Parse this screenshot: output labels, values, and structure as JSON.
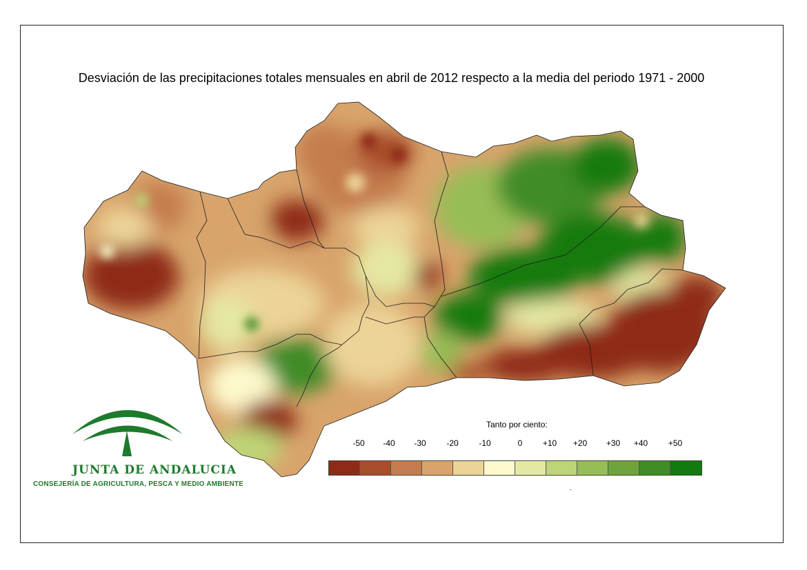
{
  "title": "Desviación de las precipitaciones totales mensuales en abril de 2012 respecto a la media del periodo 1971 - 2000",
  "legend": {
    "title": "Tanto por ciento:",
    "labels": [
      "-50",
      "-40",
      "-30",
      "-20",
      "-10",
      "0",
      "+10",
      "+20",
      "+30",
      "+40",
      "+50"
    ],
    "colors": [
      "#8e2a17",
      "#a84d2c",
      "#c47c4e",
      "#d8a46c",
      "#ecd396",
      "#fdf9cc",
      "#e5e8a2",
      "#bed577",
      "#97bd57",
      "#6ea43b",
      "#418c25",
      "#137a0f"
    ],
    "footnote": "."
  },
  "map": {
    "region": "Andalucía",
    "palette_dry": "#8e2a17",
    "palette_wet": "#137a0f"
  },
  "logo": {
    "name": "JUNTA DE ANDALUCIA",
    "department": "CONSEJERÍA DE AGRICULTURA, PESCA Y MEDIO AMBIENTE",
    "color": "#1e7a2d"
  }
}
